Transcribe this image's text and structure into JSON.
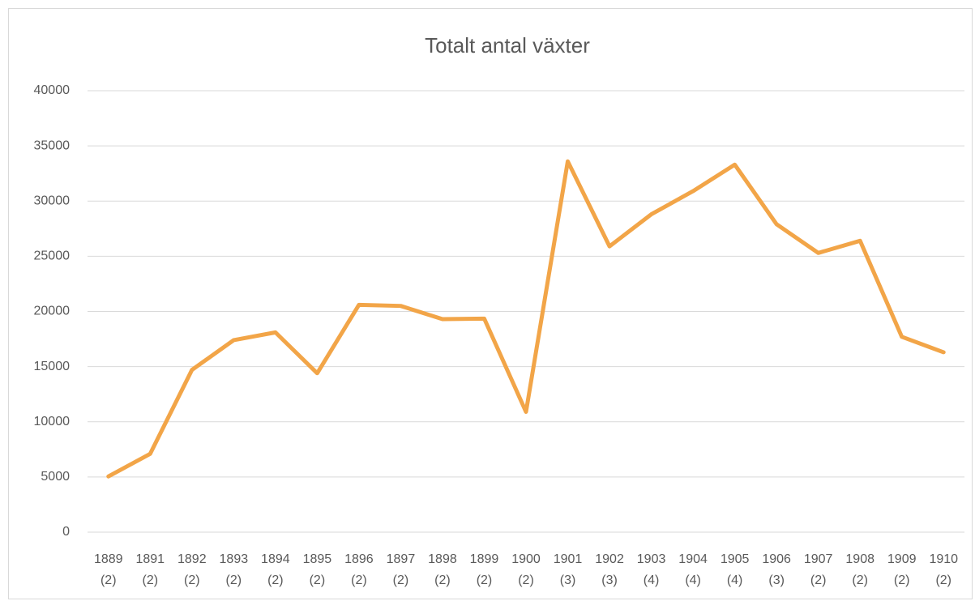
{
  "chart_data": {
    "type": "line",
    "title": "Totalt antal växter",
    "categories": [
      [
        "1889",
        "(2)"
      ],
      [
        "1891",
        "(2)"
      ],
      [
        "1892",
        "(2)"
      ],
      [
        "1893",
        "(2)"
      ],
      [
        "1894",
        "(2)"
      ],
      [
        "1895",
        "(2)"
      ],
      [
        "1896",
        "(2)"
      ],
      [
        "1897",
        "(2)"
      ],
      [
        "1898",
        "(2)"
      ],
      [
        "1899",
        "(2)"
      ],
      [
        "1900",
        "(2)"
      ],
      [
        "1901",
        "(3)"
      ],
      [
        "1902",
        "(3)"
      ],
      [
        "1903",
        "(4)"
      ],
      [
        "1904",
        "(4)"
      ],
      [
        "1905",
        "(4)"
      ],
      [
        "1906",
        "(3)"
      ],
      [
        "1907",
        "(2)"
      ],
      [
        "1908",
        "(2)"
      ],
      [
        "1909",
        "(2)"
      ],
      [
        "1910",
        "(2)"
      ]
    ],
    "values": [
      5050,
      7100,
      14700,
      17400,
      18100,
      14400,
      20600,
      20500,
      19300,
      19350,
      10900,
      33600,
      25900,
      28800,
      30900,
      33300,
      27900,
      25300,
      26400,
      17700,
      16300
    ],
    "color": "#f2a548",
    "ylim": [
      0,
      40000
    ],
    "yticks": [
      0,
      5000,
      10000,
      15000,
      20000,
      25000,
      30000,
      35000,
      40000
    ],
    "grid": true
  }
}
